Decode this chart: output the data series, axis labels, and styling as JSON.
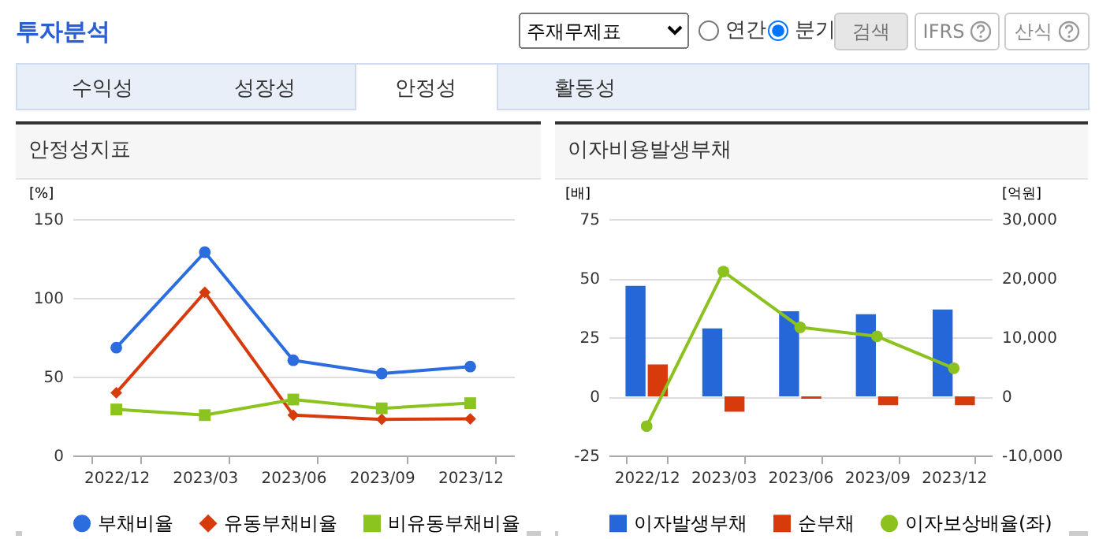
{
  "chart_data": [
    {
      "type": "other",
      "title": "투자분석",
      "annotations": [
        "주재무제표",
        "연간",
        "분기",
        "검색",
        "IFRS",
        "산식",
        "수익성",
        "성장성",
        "안정성",
        "활동성"
      ]
    },
    {
      "type": "line",
      "title": "안정성지표",
      "ylabel": "[%]",
      "categories": [
        "2022/12",
        "2023/03",
        "2023/06",
        "2023/09",
        "2023/12"
      ],
      "ylim": [
        0,
        150
      ],
      "yticks": [
        0,
        50,
        100,
        150
      ],
      "grid": "y",
      "legend": "bottom",
      "series": [
        {
          "name": "부채비율",
          "color": "#2b6cde",
          "marker": "circle",
          "values": [
            68.4,
            129,
            60.4,
            52,
            56.4
          ]
        },
        {
          "name": "유동부채비율",
          "color": "#d83b0b",
          "marker": "diamond",
          "values": [
            39.8,
            103.5,
            25.6,
            22.9,
            23.2
          ]
        },
        {
          "name": "비유동부채비율",
          "color": "#8bc41e",
          "marker": "square",
          "values": [
            29.2,
            25.6,
            35.5,
            29.9,
            33.2
          ]
        }
      ]
    },
    {
      "type": "bar",
      "title": "이자비용발생부채",
      "ylabel": "[배]",
      "y2label": "[억원]",
      "categories": [
        "2022/12",
        "2023/03",
        "2023/06",
        "2023/09",
        "2023/12"
      ],
      "ylim": [
        -25,
        75
      ],
      "yticks": [
        -25,
        0,
        25,
        50,
        75
      ],
      "y2lim": [
        -10000,
        30000
      ],
      "y2ticks": [
        {
          "value": -10000,
          "label": "-10,000"
        },
        0,
        {
          "value": 10000,
          "label": "10,000"
        },
        {
          "value": 20000,
          "label": "20,000"
        },
        {
          "value": 30000,
          "label": "30,000"
        }
      ],
      "grid": "y",
      "legend": "bottom",
      "series": [
        {
          "name": "이자발생부채",
          "type": "bar",
          "axis": "y2",
          "color": "#2567d9",
          "values": [
            18700,
            11500,
            14400,
            13900,
            14700
          ]
        },
        {
          "name": "순부채",
          "type": "bar",
          "axis": "y2",
          "color": "#d83b0b",
          "values": [
            5400,
            -2600,
            -400,
            -1500,
            -1500
          ]
        },
        {
          "name": "이자보상배율(좌)",
          "type": "line",
          "color": "#8cc21e",
          "marker": "circle",
          "values": [
            -12.6,
            52.8,
            29.2,
            25.4,
            11.9
          ]
        }
      ]
    }
  ]
}
